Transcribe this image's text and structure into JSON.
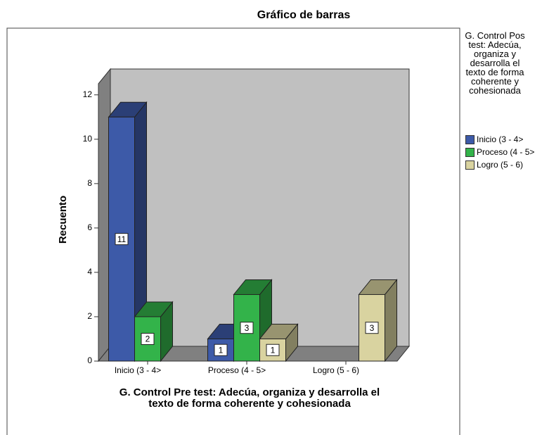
{
  "chart_data": {
    "type": "bar3d_clustered",
    "title": "Gráfico de barras",
    "x_label": "G. Control Pre test: Adecúa, organiza y desarrolla el texto de forma coherente y cohesionada",
    "y_label": "Recuento",
    "legend_title": "G. Control Pos test: Adecúa, organiza y desarrolla el texto de forma coherente y cohesionada",
    "categories": [
      "Inicio (3 - 4>",
      "Proceso (4 - 5>",
      "Logro (5 - 6)"
    ],
    "series": [
      {
        "name": "Inicio (3 - 4>",
        "color": "#3d5aa8",
        "values": [
          11,
          1,
          null
        ]
      },
      {
        "name": "Proceso (4 - 5>",
        "color": "#33b34a",
        "values": [
          2,
          3,
          null
        ]
      },
      {
        "name": "Logro (5 - 6)",
        "color": "#d9d3a0",
        "values": [
          null,
          1,
          3
        ]
      }
    ],
    "ylim": [
      0,
      12.5
    ],
    "yticks": [
      0,
      2,
      4,
      6,
      8,
      10,
      12
    ],
    "legend": "right"
  }
}
